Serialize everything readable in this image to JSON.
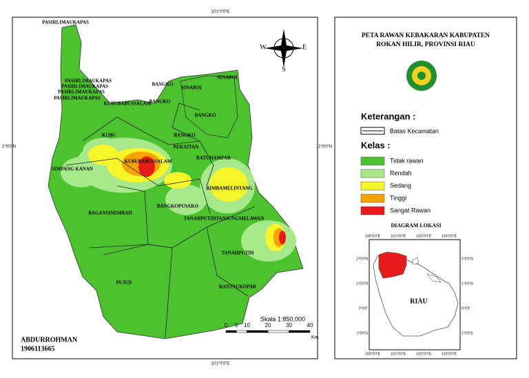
{
  "map": {
    "coord_top": "101°0'0\"E",
    "coord_bottom": "101°0'0\"E",
    "coord_left": "2°0'0\"N",
    "coord_right": "2°0'0\"N",
    "places": [
      "PASIRLIMAUKAPAS",
      "PASIRLIMAUKAPAS",
      "PASIRLIMAUKAPAS",
      "PASIRLIMAUKAPAS",
      "PASIRLIMAUKAPAS",
      "KUBUBABUSSALAM",
      "BANGKO",
      "BANGKO",
      "SINABOI",
      "SINABOI",
      "BANGKO",
      "KUBU",
      "BANGKO",
      "PEKAITAN",
      "BATUHAMPAR",
      "SIMPANG KANAN",
      "KUBUBABUSSALAM",
      "RIMBAMELINTANG",
      "BANGKOPUSAKO",
      "BAGANSINEMBAH",
      "TANAHPUTIHTANJUNGMELAWAN",
      "TANAHPUTIH",
      "PUJUD",
      "RANTAUKOPAR"
    ],
    "compass": [
      "W",
      "E",
      "S"
    ],
    "scale": {
      "text": "Skala 1:850,000",
      "ticks": [
        0,
        5,
        10,
        20,
        30,
        40
      ],
      "unit": "Km"
    },
    "author": {
      "name": "ABDURROHMAN",
      "id": "1906113665"
    }
  },
  "legend": {
    "title": [
      "PETA RAWAN KEBAKARAN KABUPATEN",
      "ROKAN HILIR, PROVINSI RIAU"
    ],
    "keterangan": "Keterangan :",
    "boundary": "Batas Kecamatan",
    "kelas_title": "Kelas :",
    "classes": [
      {
        "label": "Tidak rawan",
        "color": "#4cc22e"
      },
      {
        "label": "Rendah",
        "color": "#a6e88a"
      },
      {
        "label": "Sedang",
        "color": "#f5f52a"
      },
      {
        "label": "Tinggi",
        "color": "#f5a300"
      },
      {
        "label": "Sangat Rawan",
        "color": "#e81a1a"
      }
    ]
  },
  "inset": {
    "title": "DIAGRAM LOKASI",
    "label": "RIAU",
    "x_labels": [
      "100°0'0\"E",
      "101°0'0\"E",
      "102°0'0\"E",
      "103°0'0\"E"
    ],
    "y_labels": [
      "2°0'0\"N",
      "1°0'0\"N",
      "0°0'0\"",
      "1°0'0\"S"
    ]
  }
}
